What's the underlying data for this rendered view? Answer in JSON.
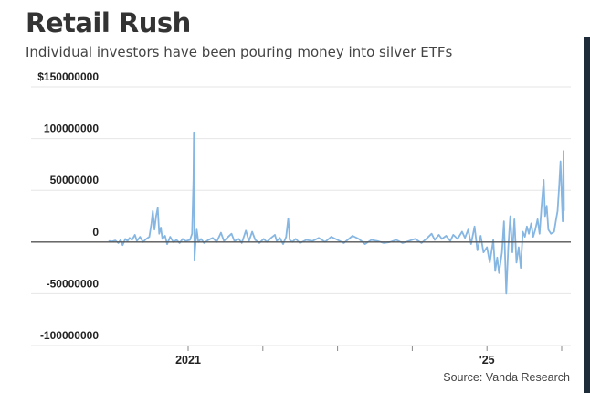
{
  "chart_data": {
    "type": "line",
    "title": "Retail Rush",
    "subtitle": "Individual investors have been pouring money into silver ETFs",
    "source": "Source: Vanda Research",
    "line_color": "#86b6e2",
    "zero_line_color": "#555555",
    "grid": true,
    "ylim": [
      -100000000,
      150000000
    ],
    "y_ticks": [
      150000000,
      100000000,
      50000000,
      0,
      -50000000,
      -100000000
    ],
    "y_tick_labels": [
      "$150000000",
      "100000000",
      "50000000",
      "0",
      "-50000000",
      "-100000000"
    ],
    "x_ticks": [
      "2021-01-01",
      "2022-01-01",
      "2023-01-01",
      "2024-01-01",
      "2025-01-01",
      "2026-01-01"
    ],
    "x_tick_labels": [
      "2021",
      "",
      "",
      "",
      "'25",
      ""
    ],
    "series": [
      {
        "points": [
          [
            "2019-12-10",
            1000000
          ],
          [
            "2019-12-25",
            500000
          ],
          [
            "2020-01-10",
            1500000
          ],
          [
            "2020-01-25",
            -1000000
          ],
          [
            "2020-02-05",
            2000000
          ],
          [
            "2020-02-15",
            -3000000
          ],
          [
            "2020-02-28",
            3000000
          ],
          [
            "2020-03-10",
            1000000
          ],
          [
            "2020-03-20",
            4000000
          ],
          [
            "2020-04-01",
            2000000
          ],
          [
            "2020-04-15",
            7000000
          ],
          [
            "2020-04-25",
            1000000
          ],
          [
            "2020-05-10",
            5000000
          ],
          [
            "2020-05-25",
            0
          ],
          [
            "2020-06-10",
            3000000
          ],
          [
            "2020-06-25",
            5000000
          ],
          [
            "2020-07-05",
            18000000
          ],
          [
            "2020-07-12",
            30000000
          ],
          [
            "2020-07-20",
            12000000
          ],
          [
            "2020-07-28",
            25000000
          ],
          [
            "2020-08-05",
            33000000
          ],
          [
            "2020-08-12",
            8000000
          ],
          [
            "2020-08-20",
            14000000
          ],
          [
            "2020-08-28",
            3000000
          ],
          [
            "2020-09-10",
            6000000
          ],
          [
            "2020-09-20",
            -2000000
          ],
          [
            "2020-10-05",
            5000000
          ],
          [
            "2020-10-20",
            0
          ],
          [
            "2020-11-05",
            2000000
          ],
          [
            "2020-11-20",
            -1000000
          ],
          [
            "2020-12-05",
            3000000
          ],
          [
            "2020-12-20",
            1000000
          ],
          [
            "2021-01-10",
            2000000
          ],
          [
            "2021-01-20",
            8000000
          ],
          [
            "2021-01-27",
            60000000
          ],
          [
            "2021-01-29",
            106000000
          ],
          [
            "2021-02-01",
            -18000000
          ],
          [
            "2021-02-05",
            -5000000
          ],
          [
            "2021-02-12",
            12000000
          ],
          [
            "2021-02-20",
            0
          ],
          [
            "2021-03-05",
            3000000
          ],
          [
            "2021-03-20",
            -1000000
          ],
          [
            "2021-04-10",
            2000000
          ],
          [
            "2021-05-01",
            4000000
          ],
          [
            "2021-05-20",
            0
          ],
          [
            "2021-06-10",
            9000000
          ],
          [
            "2021-06-25",
            1000000
          ],
          [
            "2021-07-10",
            4000000
          ],
          [
            "2021-08-01",
            8000000
          ],
          [
            "2021-08-15",
            1000000
          ],
          [
            "2021-09-05",
            3000000
          ],
          [
            "2021-09-20",
            -1000000
          ],
          [
            "2021-10-10",
            11000000
          ],
          [
            "2021-10-25",
            1000000
          ],
          [
            "2021-11-10",
            10000000
          ],
          [
            "2021-11-25",
            2000000
          ],
          [
            "2021-12-15",
            -1000000
          ],
          [
            "2022-01-05",
            3000000
          ],
          [
            "2022-01-20",
            0
          ],
          [
            "2022-02-10",
            4000000
          ],
          [
            "2022-03-01",
            7000000
          ],
          [
            "2022-03-10",
            1000000
          ],
          [
            "2022-03-25",
            4000000
          ],
          [
            "2022-04-10",
            -2000000
          ],
          [
            "2022-04-25",
            5000000
          ],
          [
            "2022-05-05",
            23000000
          ],
          [
            "2022-05-12",
            2000000
          ],
          [
            "2022-05-25",
            0
          ],
          [
            "2022-06-10",
            3000000
          ],
          [
            "2022-07-01",
            -1000000
          ],
          [
            "2022-08-01",
            2000000
          ],
          [
            "2022-09-01",
            1000000
          ],
          [
            "2022-10-01",
            4000000
          ],
          [
            "2022-11-01",
            0
          ],
          [
            "2022-12-01",
            5000000
          ],
          [
            "2023-01-01",
            2000000
          ],
          [
            "2023-02-01",
            -1000000
          ],
          [
            "2023-03-15",
            6000000
          ],
          [
            "2023-04-15",
            3000000
          ],
          [
            "2023-05-15",
            -2000000
          ],
          [
            "2023-06-15",
            2000000
          ],
          [
            "2023-07-15",
            1000000
          ],
          [
            "2023-08-15",
            -1000000
          ],
          [
            "2023-09-15",
            0
          ],
          [
            "2023-10-15",
            2000000
          ],
          [
            "2023-11-15",
            -1000000
          ],
          [
            "2023-12-15",
            1000000
          ],
          [
            "2024-01-15",
            3000000
          ],
          [
            "2024-02-15",
            -1000000
          ],
          [
            "2024-03-15",
            4000000
          ],
          [
            "2024-04-05",
            8000000
          ],
          [
            "2024-04-20",
            2000000
          ],
          [
            "2024-05-10",
            7000000
          ],
          [
            "2024-05-25",
            3000000
          ],
          [
            "2024-06-15",
            6000000
          ],
          [
            "2024-07-05",
            1000000
          ],
          [
            "2024-07-20",
            7000000
          ],
          [
            "2024-08-10",
            3000000
          ],
          [
            "2024-09-01",
            10000000
          ],
          [
            "2024-09-15",
            4000000
          ],
          [
            "2024-10-01",
            12000000
          ],
          [
            "2024-10-15",
            -2000000
          ],
          [
            "2024-11-01",
            15000000
          ],
          [
            "2024-11-15",
            -8000000
          ],
          [
            "2024-12-01",
            6000000
          ],
          [
            "2024-12-15",
            -10000000
          ],
          [
            "2025-01-01",
            -5000000
          ],
          [
            "2025-01-15",
            -20000000
          ],
          [
            "2025-02-01",
            2000000
          ],
          [
            "2025-02-10",
            -28000000
          ],
          [
            "2025-02-20",
            -15000000
          ],
          [
            "2025-03-01",
            -30000000
          ],
          [
            "2025-03-15",
            -10000000
          ],
          [
            "2025-03-25",
            20000000
          ],
          [
            "2025-04-05",
            -50000000
          ],
          [
            "2025-04-15",
            -5000000
          ],
          [
            "2025-04-25",
            25000000
          ],
          [
            "2025-05-05",
            -10000000
          ],
          [
            "2025-05-15",
            22000000
          ],
          [
            "2025-05-25",
            -20000000
          ],
          [
            "2025-06-05",
            -5000000
          ],
          [
            "2025-06-15",
            -25000000
          ],
          [
            "2025-06-25",
            10000000
          ],
          [
            "2025-07-05",
            5000000
          ],
          [
            "2025-07-15",
            15000000
          ],
          [
            "2025-07-25",
            8000000
          ],
          [
            "2025-08-05",
            18000000
          ],
          [
            "2025-08-15",
            5000000
          ],
          [
            "2025-08-25",
            12000000
          ],
          [
            "2025-09-05",
            22000000
          ],
          [
            "2025-09-15",
            8000000
          ],
          [
            "2025-09-25",
            35000000
          ],
          [
            "2025-10-05",
            60000000
          ],
          [
            "2025-10-12",
            25000000
          ],
          [
            "2025-10-20",
            35000000
          ],
          [
            "2025-10-28",
            12000000
          ],
          [
            "2025-11-10",
            8000000
          ],
          [
            "2025-11-25",
            10000000
          ],
          [
            "2025-12-05",
            22000000
          ],
          [
            "2025-12-12",
            30000000
          ],
          [
            "2025-12-20",
            55000000
          ],
          [
            "2025-12-26",
            78000000
          ],
          [
            "2026-01-02",
            40000000
          ],
          [
            "2026-01-06",
            20000000
          ],
          [
            "2026-01-10",
            88000000
          ],
          [
            "2026-01-12",
            30000000
          ]
        ]
      }
    ]
  }
}
